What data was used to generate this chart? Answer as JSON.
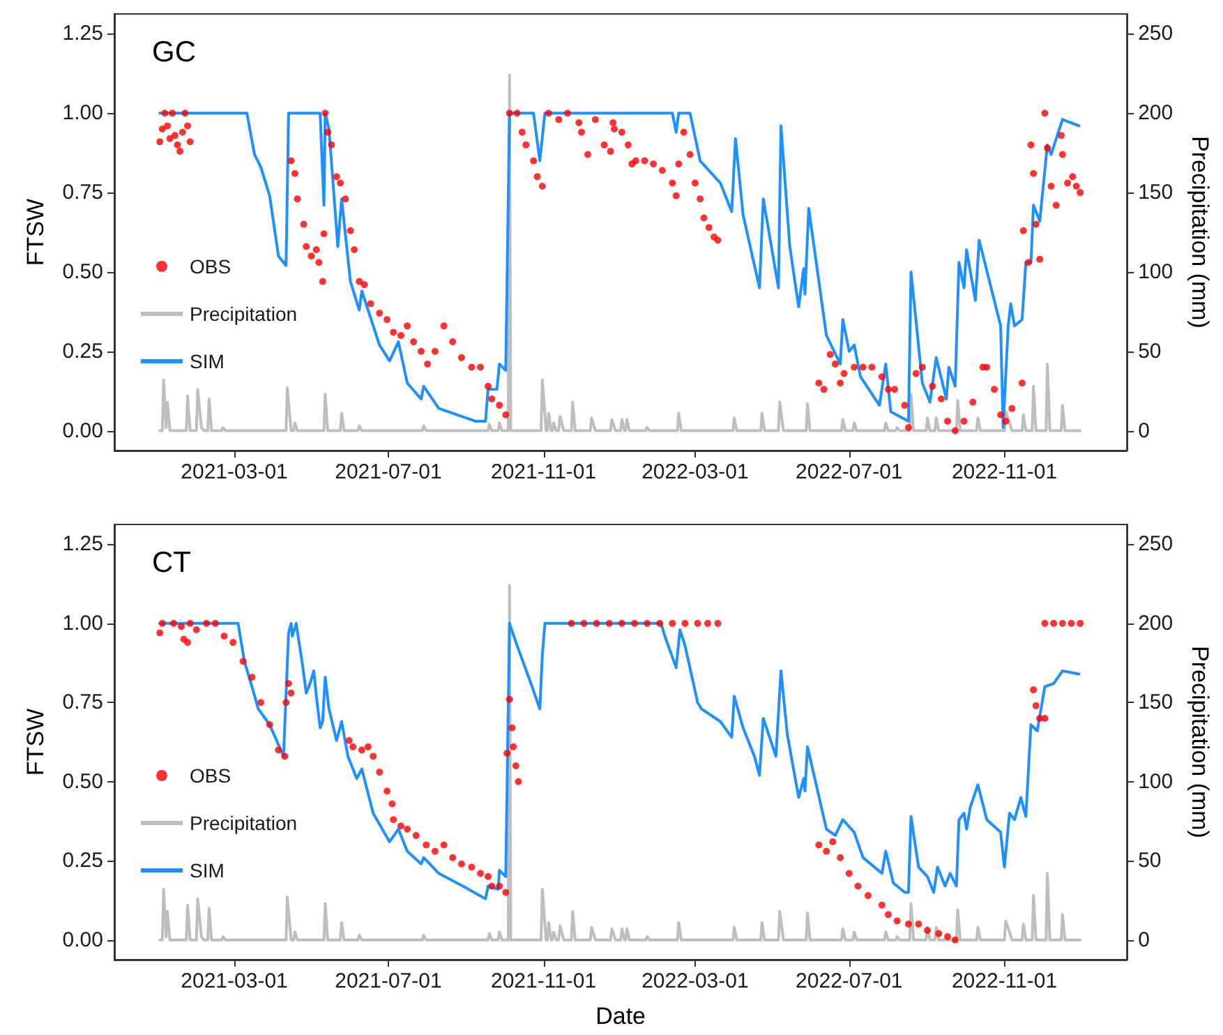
{
  "chart_data": [
    {
      "type": "line",
      "title": "GC",
      "ylabel": "FTSW",
      "y2label": "Precipitation (mm)",
      "legend": "bottom left",
      "grid": false,
      "xlim": [
        "2020-11-26",
        "2023-02-06"
      ],
      "xticks": [
        "2021-03-01",
        "2021-07-01",
        "2021-11-01",
        "2022-03-01",
        "2022-07-01",
        "2022-11-01"
      ],
      "ylim": [
        -0.0625,
        1.3125
      ],
      "yticks": [
        {
          "value": 0,
          "label": "0.00"
        },
        {
          "value": 0.25,
          "label": "0.25"
        },
        {
          "value": 0.5,
          "label": "0.50"
        },
        {
          "value": 0.75,
          "label": "0.75"
        },
        {
          "value": 1,
          "label": "1.00"
        },
        {
          "value": 1.25,
          "label": "1.25"
        }
      ],
      "y2lim": [
        -12.5,
        262.5
      ],
      "y2ticks": [
        0,
        50,
        100,
        150,
        200,
        250
      ],
      "series": [
        {
          "name": "OBS",
          "type": "scatter",
          "marker": "circle",
          "color": "#ff0000",
          "x": [
            "2021-01-01",
            "2021-01-03",
            "2021-01-05",
            "2021-01-07",
            "2021-01-09",
            "2021-01-11",
            "2021-01-13",
            "2021-01-15",
            "2021-01-17",
            "2021-01-19",
            "2021-01-21",
            "2021-01-23",
            "2021-01-25",
            "2021-04-15",
            "2021-04-18",
            "2021-04-20",
            "2021-04-25",
            "2021-04-27",
            "2021-05-01",
            "2021-05-05",
            "2021-05-07",
            "2021-05-10",
            "2021-05-11",
            "2021-05-12",
            "2021-05-14",
            "2021-05-17",
            "2021-05-21",
            "2021-05-24",
            "2021-05-28",
            "2021-06-01",
            "2021-06-04",
            "2021-06-08",
            "2021-06-12",
            "2021-06-17",
            "2021-06-24",
            "2021-06-30",
            "2021-07-05",
            "2021-07-11",
            "2021-07-16",
            "2021-07-21",
            "2021-07-27",
            "2021-08-01",
            "2021-08-07",
            "2021-08-14",
            "2021-08-21",
            "2021-08-28",
            "2021-09-05",
            "2021-09-12",
            "2021-09-18",
            "2021-09-21",
            "2021-09-27",
            "2021-10-02",
            "2021-10-05",
            "2021-10-11",
            "2021-10-15",
            "2021-10-18",
            "2021-10-24",
            "2021-10-27",
            "2021-10-31",
            "2021-11-05",
            "2021-11-13",
            "2021-11-20",
            "2021-11-29",
            "2021-12-01",
            "2021-12-06",
            "2021-12-12",
            "2021-12-19",
            "2021-12-24",
            "2021-12-26",
            "2021-12-27",
            "2022-01-02",
            "2022-01-07",
            "2022-01-10",
            "2022-01-13",
            "2022-01-20",
            "2022-01-27",
            "2022-02-03",
            "2022-02-11",
            "2022-02-14",
            "2022-02-16",
            "2022-02-20",
            "2022-02-25",
            "2022-03-01",
            "2022-03-05",
            "2022-03-08",
            "2022-03-12",
            "2022-03-16",
            "2022-03-19",
            "2022-06-07",
            "2022-06-11",
            "2022-06-16",
            "2022-06-20",
            "2022-06-24",
            "2022-06-27",
            "2022-07-05",
            "2022-07-12",
            "2022-07-19",
            "2022-07-27",
            "2022-08-01",
            "2022-08-06",
            "2022-08-14",
            "2022-08-17",
            "2022-08-23",
            "2022-08-28",
            "2022-09-05",
            "2022-09-12",
            "2022-09-17",
            "2022-09-23",
            "2022-09-30",
            "2022-10-07",
            "2022-10-15",
            "2022-10-18",
            "2022-10-24",
            "2022-10-29",
            "2022-11-02",
            "2022-11-07",
            "2022-11-15",
            "2022-11-16",
            "2022-11-20",
            "2022-11-22",
            "2022-11-24",
            "2022-11-26",
            "2022-11-29",
            "2022-12-03",
            "2022-12-05",
            "2022-12-08",
            "2022-12-12",
            "2022-12-16",
            "2022-12-17",
            "2022-12-21",
            "2022-12-25",
            "2022-12-28",
            "2022-12-31"
          ],
          "values": [
            0.91,
            0.95,
            1.0,
            0.96,
            0.92,
            1.0,
            0.93,
            0.9,
            0.88,
            0.94,
            1.0,
            0.96,
            0.91,
            0.85,
            0.81,
            0.73,
            0.65,
            0.58,
            0.55,
            0.57,
            0.53,
            0.47,
            0.62,
            1.0,
            0.94,
            0.9,
            0.8,
            0.78,
            0.73,
            0.63,
            0.57,
            0.47,
            0.46,
            0.4,
            0.37,
            0.35,
            0.31,
            0.3,
            0.33,
            0.28,
            0.25,
            0.21,
            0.25,
            0.33,
            0.28,
            0.23,
            0.2,
            0.2,
            0.14,
            0.1,
            0.08,
            0.05,
            1.0,
            1.0,
            0.94,
            0.9,
            0.85,
            0.8,
            0.77,
            1.0,
            0.98,
            1.0,
            0.97,
            0.94,
            0.87,
            0.98,
            0.9,
            0.88,
            0.97,
            0.95,
            0.94,
            0.9,
            0.84,
            0.85,
            0.85,
            0.84,
            0.82,
            0.78,
            0.74,
            0.84,
            0.94,
            0.87,
            0.78,
            0.73,
            0.67,
            0.64,
            0.61,
            0.6,
            0.15,
            0.13,
            0.24,
            0.21,
            0.15,
            0.18,
            0.2,
            0.2,
            0.2,
            0.17,
            0.13,
            0.13,
            0.08,
            0.01,
            0.18,
            0.2,
            0.14,
            0.1,
            0.03,
            0.0,
            0.03,
            0.09,
            0.2,
            0.2,
            0.13,
            0.05,
            0.03,
            0.07,
            0.15,
            0.63,
            0.53,
            0.9,
            0.81,
            0.65,
            0.54,
            1.0,
            0.89,
            0.77,
            0.71,
            0.93,
            0.87,
            0.78,
            0.8,
            0.77,
            0.75
          ]
        },
        {
          "name": "Precipitation",
          "type": "line",
          "marker": "none",
          "axis": "y2",
          "color": "#bebebe",
          "x": [
            "2021-01-01",
            "2021-01-03",
            "2021-01-04",
            "2021-01-06",
            "2021-01-07",
            "2021-01-09",
            "2021-01-22",
            "2021-01-23",
            "2021-01-25",
            "2021-01-30",
            "2021-01-31",
            "2021-02-03",
            "2021-02-05",
            "2021-02-08",
            "2021-02-09",
            "2021-02-11",
            "2021-02-19",
            "2021-02-20",
            "2021-02-22",
            "2021-04-11",
            "2021-04-12",
            "2021-04-15",
            "2021-04-17",
            "2021-04-18",
            "2021-04-20",
            "2021-05-11",
            "2021-05-12",
            "2021-05-14",
            "2021-05-24",
            "2021-05-25",
            "2021-05-27",
            "2021-06-07",
            "2021-06-08",
            "2021-06-10",
            "2021-07-28",
            "2021-07-29",
            "2021-07-31",
            "2021-09-18",
            "2021-09-19",
            "2021-09-21",
            "2021-09-26",
            "2021-09-27",
            "2021-09-29",
            "2021-10-04",
            "2021-10-05",
            "2021-10-06",
            "2021-10-30",
            "2021-10-31",
            "2021-11-03",
            "2021-11-04",
            "2021-11-05",
            "2021-11-07",
            "2021-11-08",
            "2021-11-09",
            "2021-11-11",
            "2021-11-13",
            "2021-11-14",
            "2021-11-17",
            "2021-11-23",
            "2021-11-24",
            "2021-11-26",
            "2021-12-08",
            "2021-12-09",
            "2021-12-12",
            "2021-12-24",
            "2021-12-25",
            "2021-12-28",
            "2022-01-01",
            "2022-01-02",
            "2022-01-04",
            "2022-01-05",
            "2022-01-06",
            "2022-01-08",
            "2022-01-21",
            "2022-01-22",
            "2022-01-24",
            "2022-02-15",
            "2022-02-16",
            "2022-02-18",
            "2022-03-31",
            "2022-04-01",
            "2022-04-03",
            "2022-04-22",
            "2022-04-23",
            "2022-04-25",
            "2022-05-06",
            "2022-05-07",
            "2022-05-10",
            "2022-05-28",
            "2022-05-29",
            "2022-05-31",
            "2022-06-25",
            "2022-06-26",
            "2022-06-28",
            "2022-07-04",
            "2022-07-05",
            "2022-07-07",
            "2022-07-29",
            "2022-07-30",
            "2022-08-01",
            "2022-08-07",
            "2022-08-08",
            "2022-08-10",
            "2022-08-18",
            "2022-08-19",
            "2022-08-21",
            "2022-08-31",
            "2022-09-01",
            "2022-09-03",
            "2022-09-07",
            "2022-09-08",
            "2022-09-10",
            "2022-09-24",
            "2022-09-25",
            "2022-09-27",
            "2022-10-10",
            "2022-10-11",
            "2022-10-13",
            "2022-11-01",
            "2022-11-02",
            "2022-11-05",
            "2022-11-07",
            "2022-11-15",
            "2022-11-16",
            "2022-11-18",
            "2022-11-23",
            "2022-11-24",
            "2022-11-26",
            "2022-12-04",
            "2022-12-05",
            "2022-12-07",
            "2022-12-16",
            "2022-12-17",
            "2022-12-19",
            "2022-12-31"
          ],
          "values": [
            0,
            0,
            32,
            2,
            18,
            0,
            0,
            22,
            0,
            0,
            26,
            2,
            0,
            0,
            20,
            0,
            0,
            2,
            0,
            0,
            27,
            0,
            0,
            5,
            0,
            0,
            23,
            0,
            0,
            11,
            0,
            0,
            3,
            0,
            0,
            3,
            0,
            0,
            4,
            0,
            0,
            5,
            0,
            0,
            224,
            0,
            0,
            32,
            0,
            0,
            11,
            0,
            0,
            5,
            0,
            0,
            9,
            0,
            0,
            18,
            0,
            0,
            8,
            0,
            0,
            7,
            0,
            0,
            7,
            0,
            0,
            7,
            0,
            0,
            2,
            0,
            0,
            11,
            0,
            0,
            8,
            0,
            0,
            11,
            0,
            0,
            18,
            0,
            0,
            17,
            0,
            0,
            7,
            0,
            0,
            5,
            0,
            0,
            5,
            0,
            0,
            2,
            0,
            0,
            23,
            0,
            0,
            8,
            0,
            0,
            8,
            0,
            0,
            19,
            0,
            0,
            8,
            0,
            0,
            12,
            5,
            0,
            0,
            10,
            0,
            0,
            28,
            0,
            0,
            42,
            0,
            0,
            16,
            0,
            0
          ]
        },
        {
          "name": "SIM",
          "type": "line",
          "marker": "none",
          "color": "#1e90ff",
          "x": [
            "2021-01-01",
            "2021-03-11",
            "2021-03-17",
            "2021-03-22",
            "2021-03-29",
            "2021-04-05",
            "2021-04-11",
            "2021-04-13",
            "2021-05-08",
            "2021-05-11",
            "2021-05-12",
            "2021-05-15",
            "2021-05-22",
            "2021-05-25",
            "2021-06-01",
            "2021-06-08",
            "2021-06-10",
            "2021-06-24",
            "2021-07-02",
            "2021-07-09",
            "2021-07-16",
            "2021-07-27",
            "2021-07-29",
            "2021-08-10",
            "2021-09-08",
            "2021-09-16",
            "2021-09-18",
            "2021-09-25",
            "2021-09-27",
            "2021-10-02",
            "2021-10-05",
            "2021-10-24",
            "2021-10-29",
            "2021-11-02",
            "2022-02-11",
            "2022-02-14",
            "2022-02-16",
            "2022-02-25",
            "2022-03-05",
            "2022-03-21",
            "2022-03-30",
            "2022-04-02",
            "2022-04-08",
            "2022-04-21",
            "2022-04-24",
            "2022-05-06",
            "2022-05-08",
            "2022-05-15",
            "2022-05-22",
            "2022-05-26",
            "2022-05-27",
            "2022-05-30",
            "2022-06-13",
            "2022-06-24",
            "2022-06-26",
            "2022-07-01",
            "2022-07-05",
            "2022-07-10",
            "2022-07-25",
            "2022-07-30",
            "2022-08-03",
            "2022-08-17",
            "2022-08-19",
            "2022-08-28",
            "2022-09-03",
            "2022-09-08",
            "2022-09-16",
            "2022-09-18",
            "2022-09-23",
            "2022-09-26",
            "2022-09-30",
            "2022-10-02",
            "2022-10-09",
            "2022-10-12",
            "2022-10-29",
            "2022-10-31",
            "2022-11-04",
            "2022-11-06",
            "2022-11-09",
            "2022-11-15",
            "2022-11-18",
            "2022-11-22",
            "2022-11-24",
            "2022-11-29",
            "2022-12-05",
            "2022-12-08",
            "2022-12-17",
            "2022-12-30"
          ],
          "values": [
            1.0,
            1.0,
            0.87,
            0.83,
            0.74,
            0.55,
            0.52,
            1.0,
            1.0,
            0.71,
            1.0,
            0.95,
            0.58,
            0.73,
            0.47,
            0.38,
            0.44,
            0.27,
            0.22,
            0.28,
            0.15,
            0.1,
            0.14,
            0.07,
            0.03,
            0.03,
            0.13,
            0.13,
            0.21,
            0.19,
            1.0,
            1.0,
            0.85,
            1.0,
            1.0,
            0.94,
            1.0,
            1.0,
            0.85,
            0.78,
            0.69,
            0.92,
            0.68,
            0.45,
            0.73,
            0.45,
            0.96,
            0.58,
            0.39,
            0.51,
            0.43,
            0.7,
            0.3,
            0.21,
            0.35,
            0.25,
            0.27,
            0.17,
            0.08,
            0.21,
            0.06,
            0.03,
            0.5,
            0.15,
            0.09,
            0.23,
            0.1,
            0.2,
            0.14,
            0.53,
            0.45,
            0.57,
            0.41,
            0.6,
            0.33,
            0.01,
            0.33,
            0.4,
            0.33,
            0.35,
            0.53,
            0.53,
            0.71,
            0.66,
            0.9,
            0.87,
            0.98,
            0.96
          ]
        }
      ]
    },
    {
      "type": "line",
      "title": "CT",
      "xlabel": "Date",
      "ylabel": "FTSW",
      "y2label": "Precipitation (mm)",
      "legend": "bottom left",
      "grid": false,
      "xlim": [
        "2020-11-26",
        "2023-02-06"
      ],
      "xticks": [
        "2021-03-01",
        "2021-07-01",
        "2021-11-01",
        "2022-03-01",
        "2022-07-01",
        "2022-11-01"
      ],
      "ylim": [
        -0.0625,
        1.3125
      ],
      "yticks": [
        {
          "value": 0,
          "label": "0.00"
        },
        {
          "value": 0.25,
          "label": "0.25"
        },
        {
          "value": 0.5,
          "label": "0.50"
        },
        {
          "value": 0.75,
          "label": "0.75"
        },
        {
          "value": 1,
          "label": "1.00"
        },
        {
          "value": 1.25,
          "label": "1.25"
        }
      ],
      "y2lim": [
        -12.5,
        262.5
      ],
      "y2ticks": [
        0,
        50,
        100,
        150,
        200,
        250
      ],
      "series": [
        {
          "name": "OBS",
          "type": "scatter",
          "marker": "circle",
          "color": "#ff0000",
          "x": [
            "2021-01-01",
            "2021-01-03",
            "2021-01-12",
            "2021-01-18",
            "2021-01-20",
            "2021-01-23",
            "2021-01-25",
            "2021-01-30",
            "2021-02-07",
            "2021-02-14",
            "2021-02-21",
            "2021-02-28",
            "2021-03-08",
            "2021-03-15",
            "2021-03-22",
            "2021-03-29",
            "2021-04-05",
            "2021-04-10",
            "2021-04-11",
            "2021-04-13",
            "2021-04-15",
            "2021-05-31",
            "2021-06-03",
            "2021-06-10",
            "2021-06-15",
            "2021-06-19",
            "2021-06-24",
            "2021-06-30",
            "2021-07-04",
            "2021-07-05",
            "2021-07-11",
            "2021-07-16",
            "2021-07-23",
            "2021-07-31",
            "2021-08-07",
            "2021-08-14",
            "2021-08-21",
            "2021-08-28",
            "2021-09-05",
            "2021-09-12",
            "2021-09-18",
            "2021-09-21",
            "2021-09-27",
            "2021-10-02",
            "2021-10-03",
            "2021-10-05",
            "2021-10-07",
            "2021-10-08",
            "2021-10-10",
            "2021-10-12",
            "2021-11-23",
            "2021-12-03",
            "2021-12-13",
            "2021-12-23",
            "2022-01-02",
            "2022-01-12",
            "2022-01-22",
            "2022-02-01",
            "2022-02-11",
            "2022-02-21",
            "2022-03-03",
            "2022-03-11",
            "2022-03-19",
            "2022-06-07",
            "2022-06-13",
            "2022-06-18",
            "2022-06-24",
            "2022-07-01",
            "2022-07-08",
            "2022-07-16",
            "2022-07-27",
            "2022-08-01",
            "2022-08-08",
            "2022-08-17",
            "2022-08-25",
            "2022-09-01",
            "2022-09-10",
            "2022-09-17",
            "2022-09-23",
            "2022-11-24",
            "2022-11-26",
            "2022-11-29",
            "2022-12-03",
            "2022-12-03",
            "2022-12-10",
            "2022-12-17",
            "2022-12-24",
            "2022-12-31"
          ],
          "values": [
            0.97,
            1.0,
            1.0,
            0.99,
            0.95,
            0.94,
            1.0,
            0.98,
            1.0,
            1.0,
            0.96,
            0.94,
            0.88,
            0.83,
            0.75,
            0.68,
            0.6,
            0.58,
            0.75,
            0.81,
            0.78,
            0.63,
            0.61,
            0.6,
            0.61,
            0.58,
            0.53,
            0.47,
            0.43,
            0.38,
            0.36,
            0.35,
            0.33,
            0.3,
            0.28,
            0.3,
            0.26,
            0.24,
            0.23,
            0.21,
            0.2,
            0.17,
            0.17,
            0.15,
            0.59,
            0.76,
            0.67,
            0.61,
            0.55,
            0.5,
            1.0,
            1.0,
            1.0,
            1.0,
            1.0,
            1.0,
            1.0,
            1.0,
            1.0,
            1.0,
            1.0,
            1.0,
            1.0,
            0.3,
            0.28,
            0.31,
            0.26,
            0.21,
            0.17,
            0.14,
            0.11,
            0.08,
            0.06,
            0.05,
            0.05,
            0.03,
            0.02,
            0.01,
            0.0,
            0.79,
            0.74,
            0.7,
            0.7,
            1.0,
            1.0,
            1.0,
            1.0,
            1.0
          ]
        },
        {
          "name": "Precipitation",
          "type": "line",
          "marker": "none",
          "axis": "y2",
          "color": "#bebebe",
          "x": [
            "2021-01-01",
            "2021-01-03",
            "2021-01-04",
            "2021-01-06",
            "2021-01-07",
            "2021-01-09",
            "2021-01-22",
            "2021-01-23",
            "2021-01-25",
            "2021-01-30",
            "2021-01-31",
            "2021-02-03",
            "2021-02-05",
            "2021-02-08",
            "2021-02-09",
            "2021-02-11",
            "2021-02-19",
            "2021-02-20",
            "2021-02-22",
            "2021-04-11",
            "2021-04-12",
            "2021-04-15",
            "2021-04-17",
            "2021-04-18",
            "2021-04-20",
            "2021-05-11",
            "2021-05-12",
            "2021-05-14",
            "2021-05-24",
            "2021-05-25",
            "2021-05-27",
            "2021-06-07",
            "2021-06-08",
            "2021-06-10",
            "2021-07-28",
            "2021-07-29",
            "2021-07-31",
            "2021-09-18",
            "2021-09-19",
            "2021-09-21",
            "2021-09-26",
            "2021-09-27",
            "2021-09-29",
            "2021-10-04",
            "2021-10-05",
            "2021-10-06",
            "2021-10-30",
            "2021-10-31",
            "2021-11-03",
            "2021-11-04",
            "2021-11-05",
            "2021-11-07",
            "2021-11-08",
            "2021-11-09",
            "2021-11-11",
            "2021-11-13",
            "2021-11-14",
            "2021-11-17",
            "2021-11-23",
            "2021-11-24",
            "2021-11-26",
            "2021-12-08",
            "2021-12-09",
            "2021-12-12",
            "2021-12-24",
            "2021-12-25",
            "2021-12-28",
            "2022-01-01",
            "2022-01-02",
            "2022-01-04",
            "2022-01-05",
            "2022-01-06",
            "2022-01-08",
            "2022-01-21",
            "2022-01-22",
            "2022-01-24",
            "2022-02-15",
            "2022-02-16",
            "2022-02-18",
            "2022-03-31",
            "2022-04-01",
            "2022-04-03",
            "2022-04-22",
            "2022-04-23",
            "2022-04-25",
            "2022-05-06",
            "2022-05-07",
            "2022-05-10",
            "2022-05-28",
            "2022-05-29",
            "2022-05-31",
            "2022-06-25",
            "2022-06-26",
            "2022-06-28",
            "2022-07-04",
            "2022-07-05",
            "2022-07-07",
            "2022-07-29",
            "2022-07-30",
            "2022-08-01",
            "2022-08-07",
            "2022-08-08",
            "2022-08-10",
            "2022-08-18",
            "2022-08-19",
            "2022-08-21",
            "2022-08-31",
            "2022-09-01",
            "2022-09-03",
            "2022-09-07",
            "2022-09-08",
            "2022-09-10",
            "2022-09-24",
            "2022-09-25",
            "2022-09-27",
            "2022-10-10",
            "2022-10-11",
            "2022-10-13",
            "2022-11-01",
            "2022-11-02",
            "2022-11-05",
            "2022-11-07",
            "2022-11-15",
            "2022-11-16",
            "2022-11-18",
            "2022-11-23",
            "2022-11-24",
            "2022-11-26",
            "2022-12-04",
            "2022-12-05",
            "2022-12-07",
            "2022-12-16",
            "2022-12-17",
            "2022-12-19",
            "2022-12-31"
          ],
          "values": [
            0,
            0,
            32,
            2,
            18,
            0,
            0,
            22,
            0,
            0,
            26,
            2,
            0,
            0,
            20,
            0,
            0,
            2,
            0,
            0,
            27,
            0,
            0,
            5,
            0,
            0,
            23,
            0,
            0,
            11,
            0,
            0,
            3,
            0,
            0,
            3,
            0,
            0,
            4,
            0,
            0,
            5,
            0,
            0,
            224,
            0,
            0,
            32,
            0,
            0,
            11,
            0,
            0,
            5,
            0,
            0,
            9,
            0,
            0,
            18,
            0,
            0,
            8,
            0,
            0,
            7,
            0,
            0,
            7,
            0,
            0,
            7,
            0,
            0,
            2,
            0,
            0,
            11,
            0,
            0,
            8,
            0,
            0,
            11,
            0,
            0,
            18,
            0,
            0,
            17,
            0,
            0,
            7,
            0,
            0,
            5,
            0,
            0,
            5,
            0,
            0,
            2,
            0,
            0,
            23,
            0,
            0,
            8,
            0,
            0,
            8,
            0,
            0,
            19,
            0,
            0,
            8,
            0,
            0,
            12,
            5,
            0,
            0,
            10,
            0,
            0,
            28,
            0,
            0,
            42,
            0,
            0,
            16,
            0,
            0
          ]
        },
        {
          "name": "SIM",
          "type": "line",
          "marker": "none",
          "color": "#1e90ff",
          "x": [
            "2021-01-01",
            "2021-03-04",
            "2021-03-09",
            "2021-03-15",
            "2021-03-20",
            "2021-03-29",
            "2021-04-09",
            "2021-04-13",
            "2021-04-15",
            "2021-04-16",
            "2021-04-19",
            "2021-04-24",
            "2021-04-27",
            "2021-04-30",
            "2021-05-03",
            "2021-05-05",
            "2021-05-08",
            "2021-05-10",
            "2021-05-12",
            "2021-05-15",
            "2021-05-21",
            "2021-05-25",
            "2021-05-30",
            "2021-06-06",
            "2021-06-10",
            "2021-06-19",
            "2021-07-02",
            "2021-07-09",
            "2021-07-16",
            "2021-07-27",
            "2021-07-29",
            "2021-08-10",
            "2021-08-29",
            "2021-09-16",
            "2021-09-18",
            "2021-09-26",
            "2021-09-27",
            "2021-10-02",
            "2021-10-05",
            "2021-10-11",
            "2021-10-22",
            "2021-10-29",
            "2021-10-31",
            "2021-11-02",
            "2022-02-02",
            "2022-02-05",
            "2022-02-14",
            "2022-02-17",
            "2022-02-21",
            "2022-03-03",
            "2022-03-06",
            "2022-03-21",
            "2022-03-30",
            "2022-04-01",
            "2022-04-08",
            "2022-04-17",
            "2022-04-21",
            "2022-04-24",
            "2022-05-04",
            "2022-05-08",
            "2022-05-13",
            "2022-05-22",
            "2022-05-26",
            "2022-05-27",
            "2022-05-29",
            "2022-06-13",
            "2022-06-20",
            "2022-06-26",
            "2022-07-05",
            "2022-07-12",
            "2022-07-27",
            "2022-07-30",
            "2022-08-05",
            "2022-08-14",
            "2022-08-17",
            "2022-08-19",
            "2022-08-25",
            "2022-09-01",
            "2022-09-06",
            "2022-09-09",
            "2022-09-15",
            "2022-09-19",
            "2022-09-24",
            "2022-09-26",
            "2022-09-30",
            "2022-10-02",
            "2022-10-05",
            "2022-10-11",
            "2022-10-18",
            "2022-10-29",
            "2022-11-01",
            "2022-11-05",
            "2022-11-09",
            "2022-11-14",
            "2022-11-18",
            "2022-11-22",
            "2022-11-27",
            "2022-12-03",
            "2022-12-10",
            "2022-12-17",
            "2022-12-30"
          ],
          "values": [
            1.0,
            1.0,
            0.88,
            0.8,
            0.73,
            0.68,
            0.58,
            0.97,
            1.0,
            0.96,
            1.0,
            0.87,
            0.78,
            0.81,
            0.85,
            0.77,
            0.67,
            0.69,
            0.83,
            0.73,
            0.63,
            0.69,
            0.58,
            0.51,
            0.54,
            0.4,
            0.31,
            0.35,
            0.28,
            0.24,
            0.26,
            0.21,
            0.17,
            0.13,
            0.17,
            0.16,
            0.22,
            0.2,
            1.0,
            0.93,
            0.81,
            0.73,
            0.9,
            1.0,
            1.0,
            0.96,
            0.86,
            0.98,
            0.93,
            0.75,
            0.73,
            0.69,
            0.64,
            0.77,
            0.67,
            0.58,
            0.52,
            0.7,
            0.58,
            0.85,
            0.65,
            0.45,
            0.51,
            0.47,
            0.61,
            0.35,
            0.33,
            0.38,
            0.34,
            0.26,
            0.21,
            0.28,
            0.18,
            0.15,
            0.15,
            0.39,
            0.23,
            0.2,
            0.15,
            0.23,
            0.17,
            0.21,
            0.17,
            0.38,
            0.4,
            0.35,
            0.42,
            0.49,
            0.38,
            0.34,
            0.23,
            0.4,
            0.38,
            0.45,
            0.39,
            0.68,
            0.66,
            0.8,
            0.81,
            0.85,
            0.84
          ]
        }
      ]
    }
  ]
}
